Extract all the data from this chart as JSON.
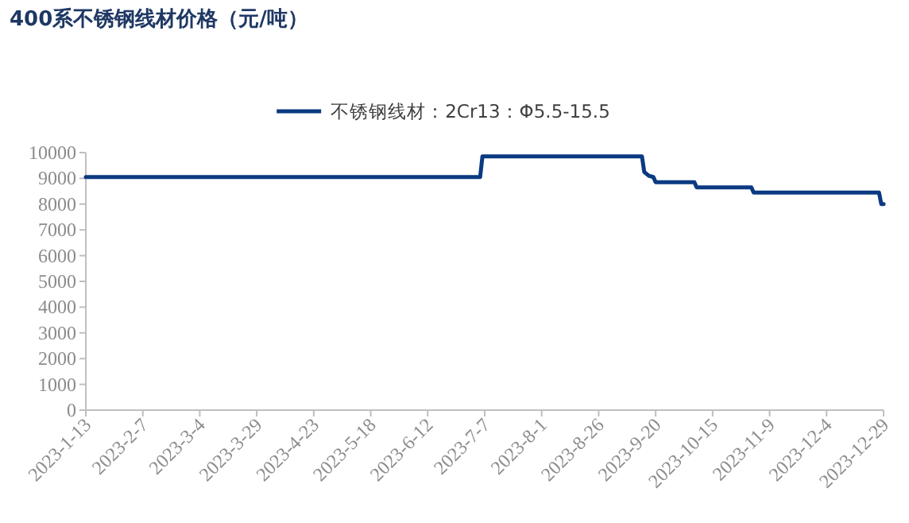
{
  "chart_data": {
    "type": "line",
    "title": "400系不锈钢线材价格（元/吨）",
    "legend": "top",
    "grid": false,
    "marker": "none",
    "line_style": "solid",
    "x": [
      "2023-01-13",
      "2023-07-05",
      "2023-07-06",
      "2023-09-14",
      "2023-09-15",
      "2023-09-17",
      "2023-09-19",
      "2023-09-20",
      "2023-10-07",
      "2023-10-08",
      "2023-11-01",
      "2023-11-02",
      "2023-12-27",
      "2023-12-28",
      "2023-12-29"
    ],
    "series": [
      {
        "name": "不锈钢线材：2Cr13：Φ5.5-15.5",
        "color": "#0b3a82",
        "values": [
          9050,
          9050,
          9850,
          9850,
          9250,
          9100,
          9050,
          8850,
          8850,
          8650,
          8650,
          8450,
          8450,
          8000,
          8000
        ]
      }
    ],
    "xlim": [
      "2023-01-13",
      "2023-12-29"
    ],
    "xticks": [
      {
        "value": "2023-01-13",
        "label": "2023-1-13"
      },
      {
        "value": "2023-02-07",
        "label": "2023-2-7"
      },
      {
        "value": "2023-03-04",
        "label": "2023-3-4"
      },
      {
        "value": "2023-03-29",
        "label": "2023-3-29"
      },
      {
        "value": "2023-04-23",
        "label": "2023-4-23"
      },
      {
        "value": "2023-05-18",
        "label": "2023-5-18"
      },
      {
        "value": "2023-06-12",
        "label": "2023-6-12"
      },
      {
        "value": "2023-07-07",
        "label": "2023-7-7"
      },
      {
        "value": "2023-08-01",
        "label": "2023-8-1"
      },
      {
        "value": "2023-08-26",
        "label": "2023-8-26"
      },
      {
        "value": "2023-09-20",
        "label": "2023-9-20"
      },
      {
        "value": "2023-10-15",
        "label": "2023-10-15"
      },
      {
        "value": "2023-11-09",
        "label": "2023-11-9"
      },
      {
        "value": "2023-12-04",
        "label": "2023-12-4"
      },
      {
        "value": "2023-12-29",
        "label": "2023-12-29"
      }
    ],
    "ylim": [
      0,
      10000
    ],
    "yticks": [
      0,
      1000,
      2000,
      3000,
      4000,
      5000,
      6000,
      7000,
      8000,
      9000,
      10000
    ]
  }
}
